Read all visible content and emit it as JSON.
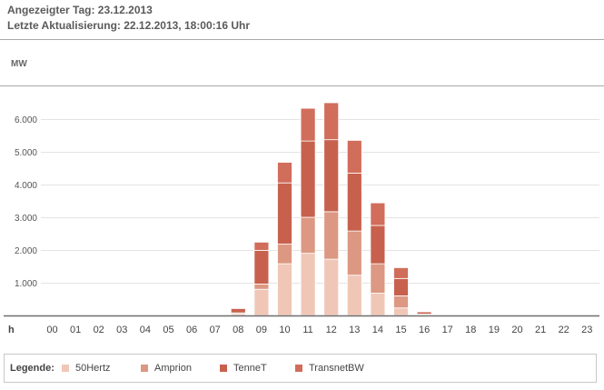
{
  "header": {
    "line1": "Angezeigter Tag: 23.12.2013",
    "line2": "Letzte Aktualisierung: 22.12.2013, 18:00:16 Uhr"
  },
  "legend": {
    "title": "Legende:"
  },
  "colors": {
    "50Hertz": "#f0c7b7",
    "Amprion": "#dc9882",
    "TenneT": "#c7614d",
    "TransnetBW": "#d16d5b"
  },
  "chart_data": {
    "type": "bar",
    "stacked": true,
    "ylabel": "MW",
    "xlabel": "h",
    "ylim": [
      0,
      6800
    ],
    "yticks": [
      "1.000",
      "2.000",
      "3.000",
      "4.000",
      "5.000",
      "6.000"
    ],
    "ytick_values": [
      1000,
      2000,
      3000,
      4000,
      5000,
      6000
    ],
    "categories": [
      "00",
      "01",
      "02",
      "03",
      "04",
      "05",
      "06",
      "07",
      "08",
      "09",
      "10",
      "11",
      "12",
      "13",
      "14",
      "15",
      "16",
      "17",
      "18",
      "19",
      "20",
      "21",
      "22",
      "23"
    ],
    "series": [
      {
        "name": "50Hertz",
        "color": "#f0c7b7",
        "values": [
          0,
          0,
          0,
          0,
          0,
          0,
          0,
          0,
          50,
          800,
          1580,
          1900,
          1720,
          1230,
          680,
          230,
          20,
          0,
          0,
          0,
          0,
          0,
          0,
          0
        ]
      },
      {
        "name": "Amprion",
        "color": "#dc9882",
        "values": [
          0,
          0,
          0,
          0,
          0,
          0,
          0,
          0,
          30,
          160,
          600,
          1100,
          1450,
          1350,
          900,
          370,
          20,
          0,
          0,
          0,
          0,
          0,
          0,
          0
        ]
      },
      {
        "name": "TenneT",
        "color": "#c7614d",
        "values": [
          0,
          0,
          0,
          0,
          0,
          0,
          0,
          0,
          130,
          1030,
          1870,
          2330,
          2200,
          1770,
          1170,
          530,
          70,
          0,
          0,
          0,
          0,
          0,
          0,
          0
        ]
      },
      {
        "name": "TransnetBW",
        "color": "#d16d5b",
        "values": [
          0,
          0,
          0,
          0,
          0,
          0,
          0,
          0,
          0,
          250,
          630,
          1000,
          1130,
          1000,
          690,
          330,
          20,
          0,
          0,
          0,
          0,
          0,
          0,
          0
        ]
      }
    ]
  }
}
